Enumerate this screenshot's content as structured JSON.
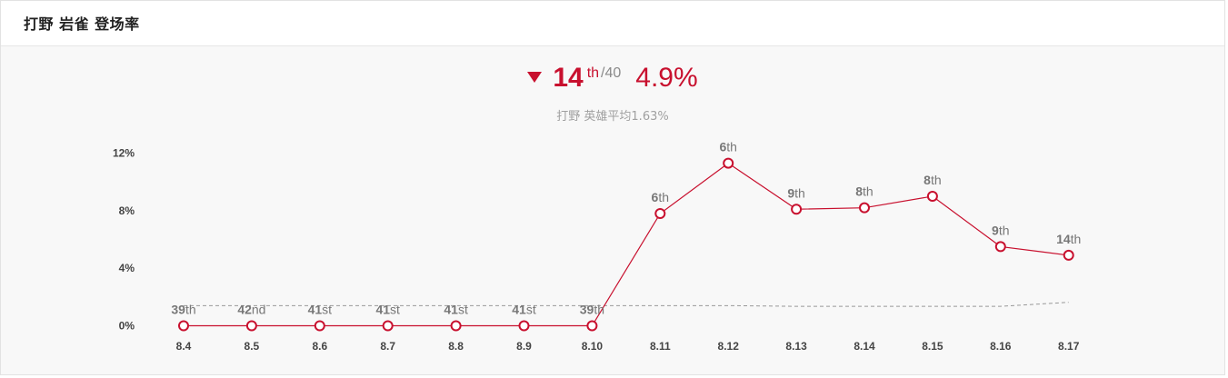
{
  "header": {
    "title": "打野 岩雀 登场率"
  },
  "summary": {
    "trend": "down",
    "trend_icon": "down-triangle-icon",
    "rank": "14",
    "rank_suffix": "th",
    "rank_total": "/40",
    "rate": "4.9%",
    "average_note": "打野 英雄平均1.63%"
  },
  "colors": {
    "accent": "#c8102e",
    "average_line": "#999999",
    "background": "#f8f8f8"
  },
  "chart_data": {
    "type": "line",
    "categories": [
      "8.4",
      "8.5",
      "8.6",
      "8.7",
      "8.8",
      "8.9",
      "8.10",
      "8.11",
      "8.12",
      "8.13",
      "8.14",
      "8.15",
      "8.16",
      "8.17"
    ],
    "series": [
      {
        "values": [
          0,
          0,
          0,
          0,
          0,
          0,
          0,
          7.8,
          11.3,
          8.1,
          8.2,
          9.0,
          5.5,
          4.9
        ],
        "rank_labels": [
          [
            "39",
            "th"
          ],
          [
            "42",
            "nd"
          ],
          [
            "41",
            "st"
          ],
          [
            "41",
            "st"
          ],
          [
            "41",
            "st"
          ],
          [
            "41",
            "st"
          ],
          [
            "39",
            "th"
          ],
          [
            "6",
            "th"
          ],
          [
            "6",
            "th"
          ],
          [
            "9",
            "th"
          ],
          [
            "8",
            "th"
          ],
          [
            "8",
            "th"
          ],
          [
            "9",
            "th"
          ],
          [
            "14",
            "th"
          ]
        ],
        "color": "#c8102e"
      },
      {
        "style": "dashed",
        "values": [
          1.4,
          1.4,
          1.4,
          1.4,
          1.4,
          1.4,
          1.4,
          1.4,
          1.4,
          1.35,
          1.35,
          1.35,
          1.35,
          1.63
        ],
        "color": "#999999"
      }
    ],
    "yticks": [
      "0%",
      "4%",
      "8%",
      "12%"
    ],
    "ytick_values": [
      0,
      4,
      8,
      12
    ],
    "ylim": [
      0,
      12
    ],
    "grid": false,
    "legend": "none"
  }
}
